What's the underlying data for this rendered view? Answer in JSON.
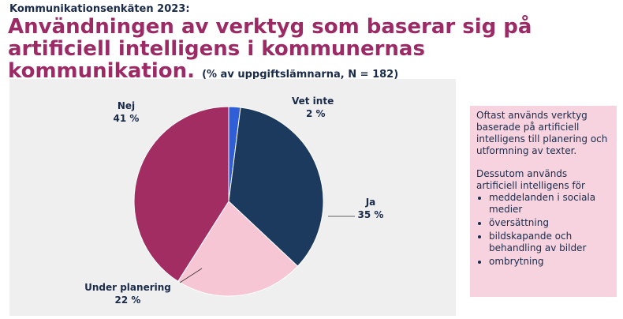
{
  "header": {
    "kicker": "Kommunikationsenkäten 2023:",
    "title": "Användningen av verktyg som baserar sig på artificiell intelligens i kommunernas kommunikation.",
    "note": "(% av uppgiftslämnarna, N = 182)"
  },
  "chart_data": {
    "type": "pie",
    "start_angle_deg": 0,
    "direction": "clockwise",
    "slices": [
      {
        "label": "Vet inte",
        "value": 2,
        "value_label": "2 %",
        "color": "#2f5ed6"
      },
      {
        "label": "Ja",
        "value": 35,
        "value_label": "35 %",
        "color": "#1c3a5e"
      },
      {
        "label": "Under planering",
        "value": 22,
        "value_label": "22 %",
        "color": "#f6c6d5"
      },
      {
        "label": "Nej",
        "value": 41,
        "value_label": "41 %",
        "color": "#a12d62"
      }
    ],
    "background": "#efefef"
  },
  "info": {
    "para1": "Oftast används verktyg baserade på artificiell intelligens till planering och utformning av texter.",
    "para2": "Dessutom används artificiell intelligens för",
    "bullets": [
      "meddelanden i sociala medier",
      "översättning",
      "bildskapande och behandling av bilder",
      "ombrytning"
    ],
    "background": "#f6d3df"
  }
}
